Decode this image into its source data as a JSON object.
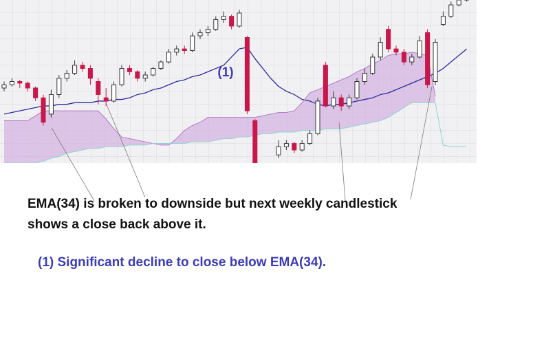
{
  "chart_data": {
    "type": "candlestick",
    "open": [
      46,
      48,
      50,
      49,
      46,
      40,
      30,
      42,
      52,
      55,
      60,
      58,
      50,
      40,
      38,
      48,
      58,
      56,
      52,
      54,
      58,
      62,
      68,
      70,
      69,
      78,
      80,
      82,
      88,
      90,
      84,
      77,
      26,
      null,
      null,
      5,
      10,
      12,
      8,
      12,
      18,
      60,
      35,
      40,
      35,
      40,
      50,
      55,
      65,
      82,
      70,
      68,
      62,
      65,
      80,
      50,
      85,
      90,
      97,
      100
    ],
    "high": [
      50,
      52,
      51,
      50,
      47,
      42,
      45,
      54,
      57,
      63,
      62,
      60,
      52,
      46,
      50,
      60,
      60,
      57,
      56,
      59,
      63,
      70,
      72,
      72,
      80,
      82,
      84,
      90,
      93,
      91,
      94,
      78,
      27,
      null,
      null,
      14,
      14,
      13,
      14,
      20,
      40,
      62,
      44,
      42,
      42,
      52,
      58,
      67,
      77,
      84,
      72,
      70,
      67,
      78,
      82,
      76,
      93,
      99,
      102,
      104
    ],
    "low": [
      44,
      47,
      46,
      44,
      38,
      23,
      28,
      40,
      50,
      54,
      56,
      48,
      36,
      35,
      37,
      47,
      54,
      50,
      50,
      53,
      57,
      61,
      66,
      67,
      68,
      76,
      78,
      81,
      86,
      82,
      83,
      30,
      -5,
      null,
      null,
      3,
      8,
      6,
      7,
      11,
      17,
      34,
      33,
      32,
      33,
      39,
      48,
      54,
      63,
      68,
      66,
      60,
      60,
      64,
      46,
      48,
      84,
      89,
      96,
      99
    ],
    "close": [
      48,
      50,
      49,
      46,
      40,
      25,
      42,
      52,
      55,
      60,
      58,
      52,
      42,
      38,
      48,
      58,
      56,
      52,
      54,
      58,
      62,
      68,
      70,
      69,
      78,
      80,
      82,
      88,
      90,
      84,
      92,
      32,
      -5,
      null,
      null,
      10,
      12,
      8,
      12,
      18,
      38,
      35,
      40,
      35,
      40,
      50,
      55,
      65,
      74,
      70,
      68,
      62,
      65,
      75,
      48,
      74,
      90,
      97,
      100,
      101
    ],
    "up_color": "#ffffff",
    "down_color": "#c8174a",
    "wick_color": "#333333",
    "ylim": [
      0,
      100
    ],
    "cloud_color": "#cfa6e0",
    "series": [
      {
        "color": "#2b2b9e",
        "values": [
          30,
          31,
          32,
          33,
          34,
          35,
          35,
          36,
          36,
          37,
          37,
          37,
          38,
          38,
          39,
          39,
          40,
          42,
          43,
          45,
          46,
          48,
          50,
          51,
          53,
          54,
          56,
          58,
          60,
          65,
          70,
          71,
          64,
          58,
          52,
          47,
          44,
          42,
          39,
          38,
          36,
          35,
          36,
          36,
          37,
          38,
          39,
          40,
          42,
          43,
          45,
          47,
          49,
          51,
          53,
          55,
          58,
          62,
          66,
          70
        ]
      },
      {
        "color": "#b07cc6",
        "values": [
          26,
          26,
          26,
          26,
          29,
          32,
          32,
          32,
          32,
          32,
          32,
          32,
          32,
          27,
          21,
          16,
          15,
          14,
          13,
          12,
          11,
          11,
          15,
          20,
          23,
          25,
          28,
          28,
          28,
          28,
          28,
          28,
          28,
          29,
          30,
          31,
          31,
          32,
          37,
          43,
          45,
          47,
          49,
          51,
          53,
          56,
          58,
          61,
          63,
          66,
          67,
          67,
          68,
          67,
          66,
          41,
          null,
          null,
          null,
          null
        ]
      },
      {
        "color": "#8fd3d0",
        "values": [
          0,
          0,
          0,
          0,
          0,
          1,
          3,
          4,
          6,
          7,
          8,
          9,
          9,
          10,
          10,
          10,
          11,
          11,
          11,
          12,
          12,
          12,
          12,
          12,
          13,
          13,
          13,
          14,
          15,
          15,
          16,
          16,
          17,
          18,
          18,
          19,
          19,
          19,
          20,
          20,
          20,
          21,
          21,
          21,
          22,
          23,
          24,
          25,
          26,
          28,
          31,
          34,
          37,
          37,
          37,
          37,
          11,
          10,
          10,
          10
        ]
      }
    ],
    "annotations": [
      "(1)",
      "EMA(34) is broken to downside but next weekly candlestick",
      "shows a close back above it.",
      "(1)  Significant decline to close below EMA(34)."
    ]
  }
}
